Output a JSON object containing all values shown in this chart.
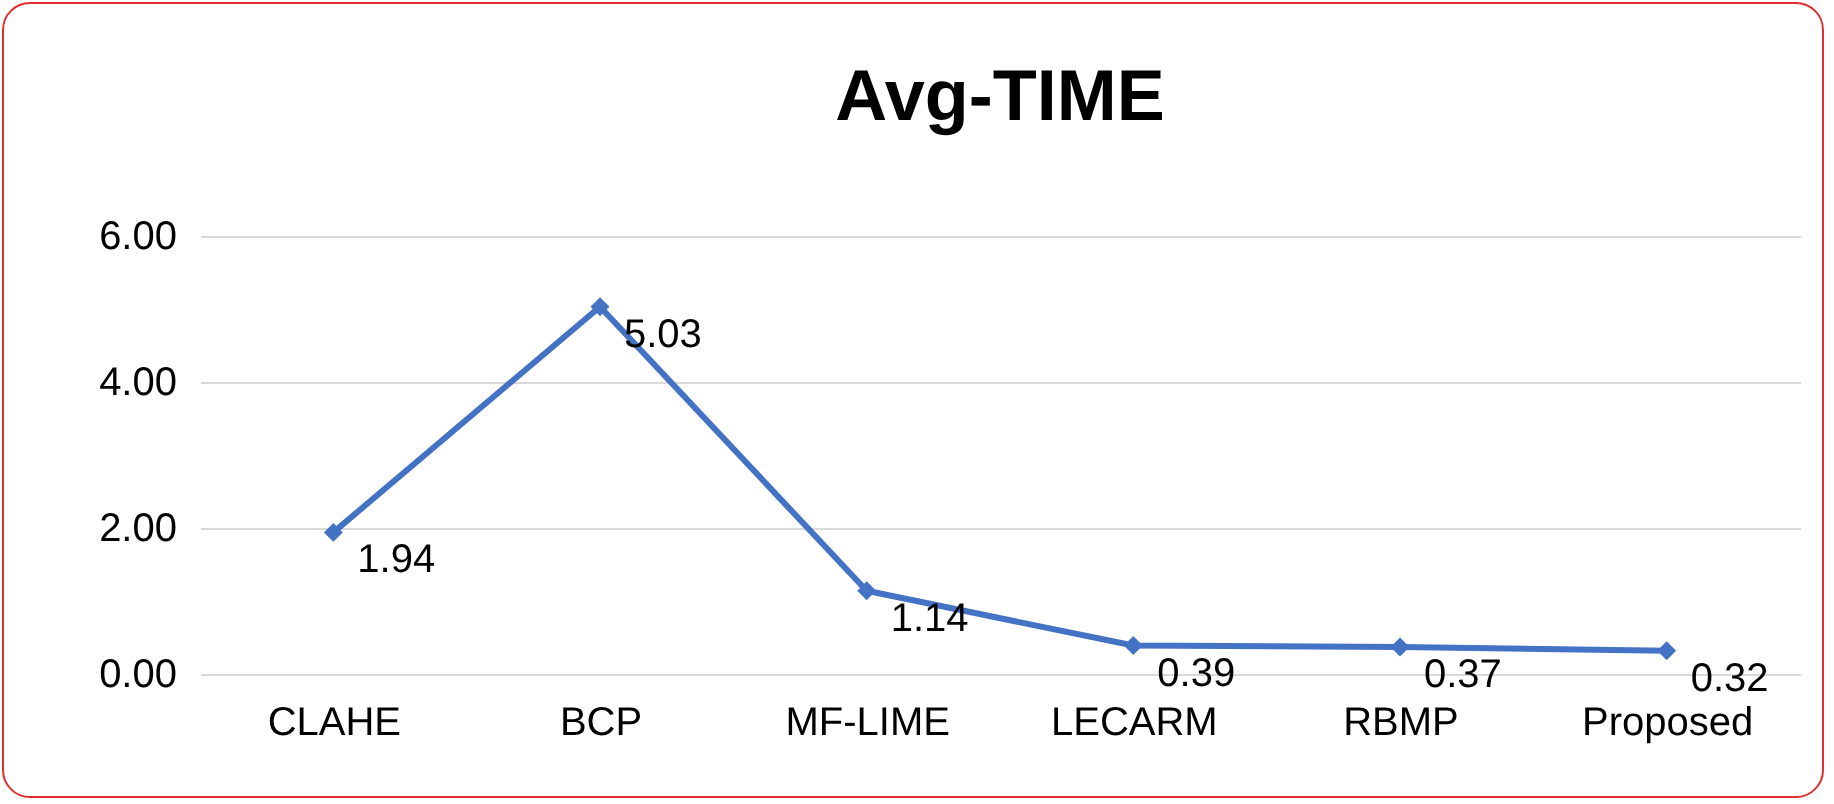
{
  "chart_data": {
    "type": "line",
    "title": "Avg-TIME",
    "categories": [
      "CLAHE",
      "BCP",
      "MF-LIME",
      "LECARM",
      "RBMP",
      "Proposed"
    ],
    "series": [
      {
        "color": "#4472c4",
        "values": [
          1.94,
          5.03,
          1.14,
          0.39,
          0.37,
          0.32
        ]
      }
    ],
    "ylim": [
      0,
      6
    ],
    "yticks": [
      {
        "value": 0,
        "label": "0.00"
      },
      {
        "value": 2,
        "label": "2.00"
      },
      {
        "value": 4,
        "label": "4.00"
      },
      {
        "value": 6,
        "label": "6.00"
      }
    ],
    "grid": "y",
    "marker": "diamond",
    "data_labels": true,
    "legend": false
  }
}
